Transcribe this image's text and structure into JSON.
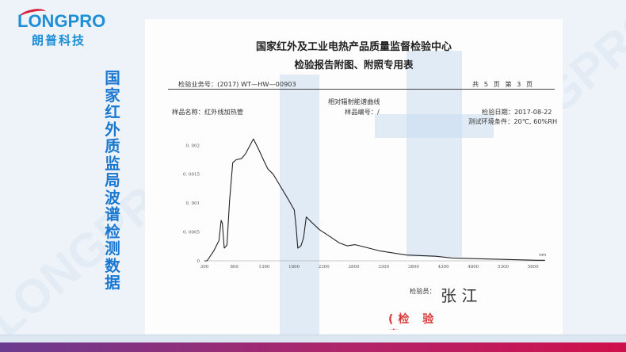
{
  "brand": {
    "name_en": "LONGPRO",
    "name_cn": "朗普科技",
    "color": "#1e8fd6"
  },
  "slide_title": "国家红外质监局波谱检测数据",
  "report": {
    "org_title": "国家红外及工业电热产品质量监督检验中心",
    "form_title": "检验报告附图、附照专用表",
    "business_no": "检验业务号：(2017) WT—HW—00903",
    "page_info": "共 5 页 第 3 页",
    "chart_caption": "相对辐射能谱曲线",
    "sample_name": "样品名称：红外线加热管",
    "sample_no": "样品编号：/",
    "test_date": "检验日期：2017-08-22",
    "env": "测试环境条件：20℃, 60%RH",
    "inspector_label": "检验员：",
    "inspector_signature": "张 江",
    "stamp_text": "检验专用章"
  },
  "chart_data": {
    "type": "line",
    "xlabel": "nm",
    "ylabel": "",
    "xlim": [
      300,
      6000
    ],
    "ylim": [
      0,
      0.0021
    ],
    "x_ticks": [
      "300",
      "800",
      "1300",
      "1800",
      "2300",
      "2800",
      "3300",
      "3800",
      "4300",
      "4800",
      "5300",
      "5800"
    ],
    "y_ticks": [
      "0",
      "0.0005",
      "0.001",
      "0.0015",
      "0.002"
    ],
    "grid": false,
    "series": [
      {
        "x": [
          300,
          344,
          455,
          543,
          580,
          600,
          632,
          676,
          720,
          773,
          831,
          920,
          986,
          1119,
          1207,
          1296,
          1362,
          1450,
          1561,
          1694,
          1804,
          1835,
          1862,
          1915,
          1959,
          2004,
          2092,
          2225,
          2402,
          2557,
          2690,
          2822,
          2977,
          3243,
          3685,
          4172,
          4438,
          5102,
          5876,
          6000
        ],
        "y": [
          0,
          0,
          0.00017,
          0.00035,
          0.0007,
          0.00065,
          0.00022,
          0.00027,
          0.00104,
          0.0017,
          0.00175,
          0.00177,
          0.00185,
          0.00211,
          0.00193,
          0.00173,
          0.00159,
          0.0015,
          0.00131,
          0.00108,
          0.00088,
          0.00058,
          0.00022,
          0.00026,
          0.0004,
          0.00076,
          0.00067,
          0.00054,
          0.00042,
          0.00031,
          0.00026,
          0.00028,
          0.00024,
          0.00017,
          0.0001,
          8e-05,
          5e-05,
          3e-05,
          1e-05,
          1e-05
        ]
      }
    ]
  }
}
